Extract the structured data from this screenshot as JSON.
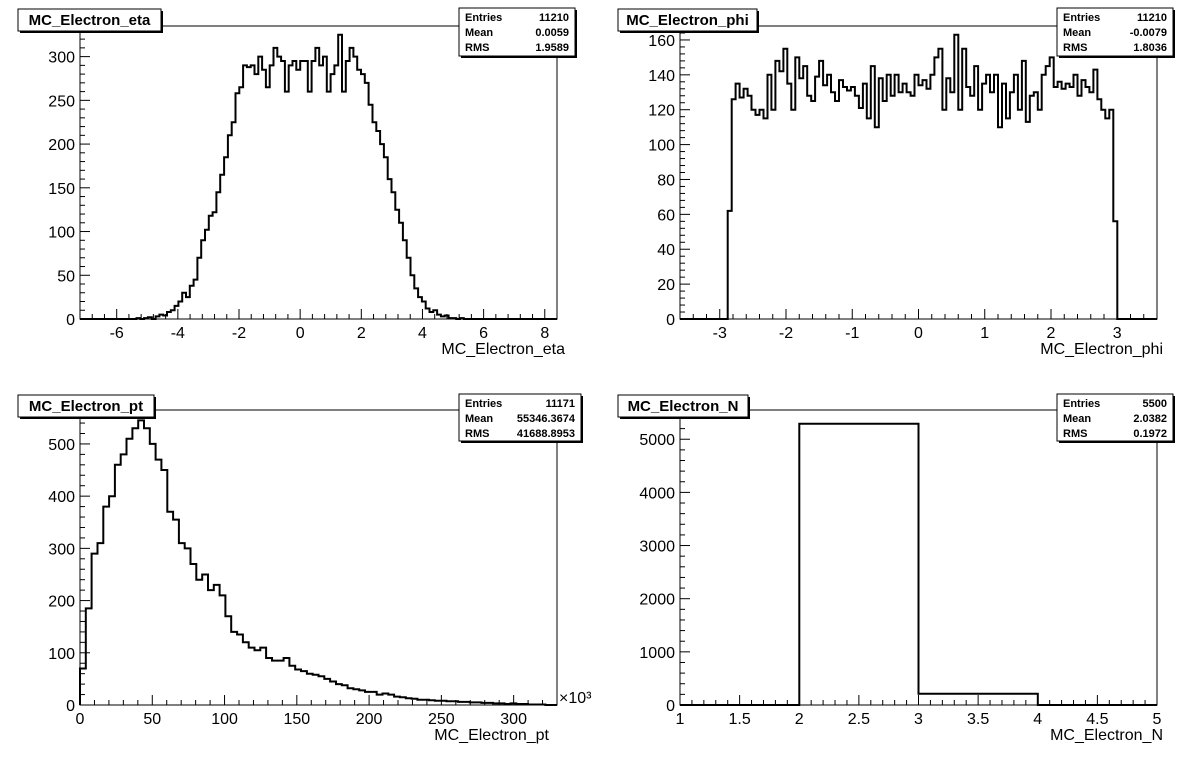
{
  "chart_data": [
    {
      "type": "histogram",
      "title": "MC_Electron_eta",
      "xlabel": "MC_Electron_eta",
      "xlim": [
        -7.2,
        8.4
      ],
      "ylim": [
        0,
        335
      ],
      "xticks": [
        -6,
        -4,
        -2,
        0,
        2,
        4,
        6,
        8
      ],
      "xtick_labels": [
        "-6",
        "-4",
        "-2",
        "0",
        "2",
        "4",
        "6",
        "8"
      ],
      "yticks": [
        0,
        50,
        100,
        150,
        200,
        250,
        300
      ],
      "ytick_labels": [
        "0",
        "50",
        "100",
        "150",
        "200",
        "250",
        "300"
      ],
      "stats": [
        {
          "label": "Entries",
          "value": "11210"
        },
        {
          "label": "Mean",
          "value": "0.0059"
        },
        {
          "label": "RMS",
          "value": "1.9589"
        }
      ],
      "bin_edges": [
        -5.6,
        5.6
      ],
      "values": [
        0,
        0,
        1,
        0,
        1,
        2,
        0,
        3,
        5,
        4,
        8,
        10,
        15,
        20,
        30,
        25,
        38,
        45,
        70,
        90,
        102,
        118,
        122,
        145,
        165,
        185,
        210,
        225,
        258,
        265,
        290,
        288,
        290,
        280,
        300,
        285,
        265,
        290,
        310,
        300,
        295,
        260,
        290,
        295,
        285,
        295,
        295,
        260,
        295,
        310,
        290,
        300,
        260,
        280,
        290,
        325,
        260,
        295,
        310,
        300,
        285,
        280,
        270,
        245,
        225,
        215,
        200,
        185,
        160,
        145,
        125,
        110,
        90,
        70,
        50,
        35,
        25,
        20,
        12,
        8,
        10,
        5,
        3,
        4,
        1,
        1,
        0,
        1,
        0,
        0
      ]
    },
    {
      "type": "histogram",
      "title": "MC_Electron_phi",
      "xlabel": "MC_Electron_phi",
      "xlim": [
        -3.6,
        3.6
      ],
      "ylim": [
        0,
        168
      ],
      "xticks": [
        -3,
        -2,
        -1,
        0,
        1,
        2,
        3
      ],
      "xtick_labels": [
        "-3",
        "-2",
        "-1",
        "0",
        "1",
        "2",
        "3"
      ],
      "yticks": [
        0,
        20,
        40,
        60,
        80,
        100,
        120,
        140,
        160
      ],
      "ytick_labels": [
        "0",
        "20",
        "40",
        "60",
        "80",
        "100",
        "120",
        "140",
        "160"
      ],
      "stats": [
        {
          "label": "Entries",
          "value": "11210"
        },
        {
          "label": "Mean",
          "value": "-0.0079"
        },
        {
          "label": "RMS",
          "value": "1.8036"
        }
      ],
      "bin_edges": [
        -3.6,
        3.6
      ],
      "values": [
        0,
        0,
        0,
        0,
        0,
        0,
        0,
        0,
        0,
        0,
        0,
        0,
        62,
        126,
        135,
        127,
        132,
        128,
        120,
        117,
        120,
        115,
        140,
        120,
        148,
        142,
        155,
        135,
        120,
        150,
        138,
        145,
        128,
        125,
        139,
        148,
        134,
        140,
        130,
        125,
        137,
        133,
        131,
        133,
        128,
        121,
        135,
        115,
        145,
        110,
        138,
        125,
        140,
        128,
        140,
        130,
        135,
        130,
        128,
        140,
        134,
        137,
        132,
        140,
        150,
        155,
        120,
        138,
        130,
        163,
        120,
        155,
        133,
        128,
        145,
        120,
        135,
        140,
        130,
        140,
        110,
        135,
        115,
        130,
        140,
        120,
        148,
        113,
        128,
        130,
        120,
        140,
        145,
        150,
        133,
        136,
        132,
        135,
        133,
        140,
        128,
        137,
        133,
        130,
        143,
        126,
        120,
        115,
        120,
        56,
        0,
        0,
        0,
        0,
        0,
        0,
        0,
        0,
        0,
        0
      ]
    },
    {
      "type": "histogram",
      "title": "MC_Electron_pt",
      "xlabel": "MC_Electron_pt",
      "x_multiplier": "×10³",
      "xlim": [
        0,
        330
      ],
      "ylim": [
        0,
        565
      ],
      "xticks": [
        0,
        50,
        100,
        150,
        200,
        250,
        300
      ],
      "xtick_labels": [
        "0",
        "50",
        "100",
        "150",
        "200",
        "250",
        "300"
      ],
      "yticks": [
        0,
        100,
        200,
        300,
        400,
        500
      ],
      "ytick_labels": [
        "0",
        "100",
        "200",
        "300",
        "400",
        "500"
      ],
      "stats": [
        {
          "label": "Entries",
          "value": "11171"
        },
        {
          "label": "Mean",
          "value": "55346.3674"
        },
        {
          "label": "RMS",
          "value": "41688.8953"
        }
      ],
      "bin_edges": [
        0,
        330
      ],
      "values": [
        70,
        185,
        290,
        310,
        380,
        400,
        460,
        480,
        510,
        530,
        545,
        530,
        500,
        470,
        450,
        370,
        355,
        310,
        300,
        270,
        240,
        250,
        220,
        230,
        210,
        170,
        140,
        135,
        120,
        110,
        105,
        110,
        90,
        85,
        85,
        90,
        75,
        68,
        65,
        60,
        58,
        55,
        50,
        45,
        40,
        38,
        32,
        30,
        28,
        25,
        25,
        20,
        22,
        20,
        16,
        15,
        13,
        12,
        10,
        10,
        9,
        8,
        8,
        7,
        7,
        6,
        6,
        5,
        5,
        4,
        4,
        3,
        3,
        2,
        3,
        2,
        2,
        1,
        1,
        1,
        0,
        0
      ]
    },
    {
      "type": "histogram",
      "title": "MC_Electron_N",
      "xlabel": "MC_Electron_N",
      "xlim": [
        1,
        5
      ],
      "ylim": [
        0,
        5550
      ],
      "xticks": [
        1,
        1.5,
        2,
        2.5,
        3,
        3.5,
        4,
        4.5,
        5
      ],
      "xtick_labels": [
        "1",
        "1.5",
        "2",
        "2.5",
        "3",
        "3.5",
        "4",
        "4.5",
        "5"
      ],
      "yticks": [
        0,
        1000,
        2000,
        3000,
        4000,
        5000
      ],
      "ytick_labels": [
        "0",
        "1000",
        "2000",
        "3000",
        "4000",
        "5000"
      ],
      "stats": [
        {
          "label": "Entries",
          "value": "5500"
        },
        {
          "label": "Mean",
          "value": "2.0382"
        },
        {
          "label": "RMS",
          "value": "0.1972"
        }
      ],
      "bin_edges": [
        1,
        5
      ],
      "values": [
        0,
        5290,
        210,
        0
      ]
    }
  ]
}
